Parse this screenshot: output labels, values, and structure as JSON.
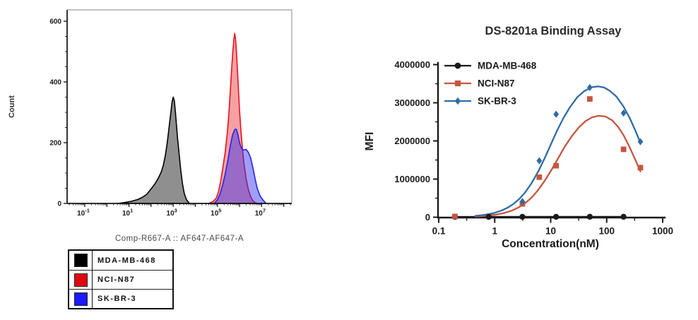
{
  "chart_data": [
    {
      "id": "flow-histogram",
      "type": "area",
      "title": "",
      "xlabel": "Comp-R667-A :: AF647-AF647-A",
      "ylabel": "Count",
      "x_scale": "log",
      "xlim_log10": [
        -1.8,
        8.3
      ],
      "x_decade_labels": [
        -1,
        1,
        3,
        5,
        7
      ],
      "ylim": [
        0,
        600
      ],
      "yticks": [
        0,
        200,
        400,
        600
      ],
      "grid": false,
      "legend_position": "below-left",
      "legend": [
        {
          "label": "MDA-MB-468",
          "color": "#000000"
        },
        {
          "label": "NCI-N87",
          "color": "#dd0a10"
        },
        {
          "label": "SK-BR-3",
          "color": "#1a1aff"
        }
      ],
      "series": [
        {
          "name": "MDA-MB-468",
          "stroke": "#000000",
          "fill": "rgba(0,0,0,0.44)",
          "points_log10x_count": [
            [
              0.5,
              0
            ],
            [
              0.8,
              3
            ],
            [
              1.1,
              7
            ],
            [
              1.4,
              13
            ],
            [
              1.6,
              20
            ],
            [
              1.8,
              30
            ],
            [
              2.0,
              48
            ],
            [
              2.15,
              62
            ],
            [
              2.3,
              80
            ],
            [
              2.45,
              102
            ],
            [
              2.55,
              125
            ],
            [
              2.65,
              160
            ],
            [
              2.72,
              195
            ],
            [
              2.78,
              230
            ],
            [
              2.84,
              268
            ],
            [
              2.9,
              305
            ],
            [
              2.95,
              335
            ],
            [
              3.0,
              350
            ],
            [
              3.05,
              338
            ],
            [
              3.1,
              300
            ],
            [
              3.15,
              255
            ],
            [
              3.2,
              210
            ],
            [
              3.27,
              160
            ],
            [
              3.34,
              110
            ],
            [
              3.42,
              65
            ],
            [
              3.5,
              32
            ],
            [
              3.6,
              12
            ],
            [
              3.7,
              3
            ],
            [
              3.75,
              0
            ]
          ]
        },
        {
          "name": "NCI-N87",
          "stroke": "#e8121d",
          "fill": "rgba(232,30,37,0.42)",
          "points_log10x_count": [
            [
              4.6,
              0
            ],
            [
              4.8,
              6
            ],
            [
              4.95,
              18
            ],
            [
              5.05,
              40
            ],
            [
              5.15,
              75
            ],
            [
              5.25,
              120
            ],
            [
              5.35,
              170
            ],
            [
              5.45,
              235
            ],
            [
              5.52,
              300
            ],
            [
              5.58,
              370
            ],
            [
              5.64,
              440
            ],
            [
              5.7,
              505
            ],
            [
              5.75,
              545
            ],
            [
              5.78,
              560
            ],
            [
              5.82,
              540
            ],
            [
              5.86,
              500
            ],
            [
              5.9,
              445
            ],
            [
              5.95,
              375
            ],
            [
              6.0,
              305
            ],
            [
              6.06,
              240
            ],
            [
              6.13,
              180
            ],
            [
              6.2,
              130
            ],
            [
              6.3,
              80
            ],
            [
              6.4,
              45
            ],
            [
              6.5,
              22
            ],
            [
              6.6,
              9
            ],
            [
              6.72,
              2
            ],
            [
              6.8,
              0
            ]
          ]
        },
        {
          "name": "SK-BR-3",
          "stroke": "#2222ee",
          "fill": "rgba(43,43,240,0.45)",
          "points_log10x_count": [
            [
              4.85,
              0
            ],
            [
              5.0,
              12
            ],
            [
              5.12,
              32
            ],
            [
              5.24,
              62
            ],
            [
              5.36,
              100
            ],
            [
              5.48,
              145
            ],
            [
              5.58,
              190
            ],
            [
              5.68,
              225
            ],
            [
              5.78,
              243
            ],
            [
              5.85,
              245
            ],
            [
              5.92,
              228
            ],
            [
              5.98,
              205
            ],
            [
              6.05,
              188
            ],
            [
              6.12,
              178
            ],
            [
              6.2,
              176
            ],
            [
              6.3,
              178
            ],
            [
              6.4,
              168
            ],
            [
              6.5,
              150
            ],
            [
              6.6,
              118
            ],
            [
              6.7,
              82
            ],
            [
              6.8,
              50
            ],
            [
              6.92,
              26
            ],
            [
              7.05,
              12
            ],
            [
              7.2,
              0
            ]
          ]
        }
      ]
    },
    {
      "id": "binding-assay",
      "type": "scatter",
      "title": "DS-8201a Binding Assay",
      "xlabel": "Concentration(nM)",
      "ylabel": "MFI",
      "x_scale": "log",
      "xticks": [
        0.1,
        1,
        10,
        100,
        1000
      ],
      "xlim": [
        0.1,
        1000
      ],
      "yticks": [
        0,
        1000000,
        2000000,
        3000000,
        4000000
      ],
      "ylim": [
        0,
        4000000
      ],
      "grid": false,
      "legend_position": "top-left-inside",
      "series": [
        {
          "name": "MDA-MB-468",
          "color": "#1a1a1a",
          "marker": "circle",
          "points": [
            [
              0.195,
              8000
            ],
            [
              0.78,
              8000
            ],
            [
              3.125,
              10000
            ],
            [
              12.5,
              10000
            ],
            [
              50,
              12000
            ],
            [
              200,
              12000
            ]
          ],
          "curve": [
            [
              0.195,
              9000
            ],
            [
              200,
              11000
            ]
          ]
        },
        {
          "name": "NCI-N87",
          "color": "#c65540",
          "marker": "square",
          "points": [
            [
              0.195,
              20000
            ],
            [
              3.125,
              350000
            ],
            [
              6.25,
              1050000
            ],
            [
              12.5,
              1350000
            ],
            [
              50,
              3100000
            ],
            [
              200,
              1780000
            ],
            [
              400,
              1300000
            ]
          ],
          "curve": [
            [
              0.45,
              19000
            ],
            [
              0.7,
              37000
            ],
            [
              1,
              63000
            ],
            [
              1.4,
              102000
            ],
            [
              2,
              170000
            ],
            [
              2.7,
              259000
            ],
            [
              3.5,
              368000
            ],
            [
              4.6,
              521000
            ],
            [
              6,
              716000
            ],
            [
              8,
              977000
            ],
            [
              10.5,
              1260000
            ],
            [
              14,
              1580000
            ],
            [
              18,
              1860000
            ],
            [
              24,
              2130000
            ],
            [
              32,
              2360000
            ],
            [
              42,
              2520000
            ],
            [
              55,
              2620000
            ],
            [
              72,
              2660000
            ],
            [
              95,
              2640000
            ],
            [
              125,
              2540000
            ],
            [
              160,
              2370000
            ],
            [
              200,
              2150000
            ],
            [
              250,
              1870000
            ],
            [
              310,
              1570000
            ],
            [
              400,
              1200000
            ]
          ]
        },
        {
          "name": "SK-BR-3",
          "color": "#2e6ca4",
          "marker": "diamond",
          "points": [
            [
              3.125,
              410000
            ],
            [
              6.25,
              1480000
            ],
            [
              12.5,
              2700000
            ],
            [
              50,
              3400000
            ],
            [
              200,
              2730000
            ],
            [
              400,
              1980000
            ]
          ],
          "curve": [
            [
              0.45,
              36000
            ],
            [
              0.6,
              55000
            ],
            [
              0.8,
              84000
            ],
            [
              1,
              117000
            ],
            [
              1.3,
              170000
            ],
            [
              1.7,
              248000
            ],
            [
              2.2,
              355000
            ],
            [
              2.8,
              490000
            ],
            [
              3.5,
              651000
            ],
            [
              4.5,
              882000
            ],
            [
              6,
              1200000
            ],
            [
              8,
              1580000
            ],
            [
              10,
              1900000
            ],
            [
              13,
              2270000
            ],
            [
              17,
              2610000
            ],
            [
              22,
              2880000
            ],
            [
              30,
              3150000
            ],
            [
              40,
              3310000
            ],
            [
              55,
              3410000
            ],
            [
              70,
              3430000
            ],
            [
              90,
              3400000
            ],
            [
              115,
              3310000
            ],
            [
              150,
              3160000
            ],
            [
              200,
              2900000
            ],
            [
              260,
              2590000
            ],
            [
              330,
              2250000
            ],
            [
              400,
              1950000
            ]
          ]
        }
      ]
    }
  ]
}
